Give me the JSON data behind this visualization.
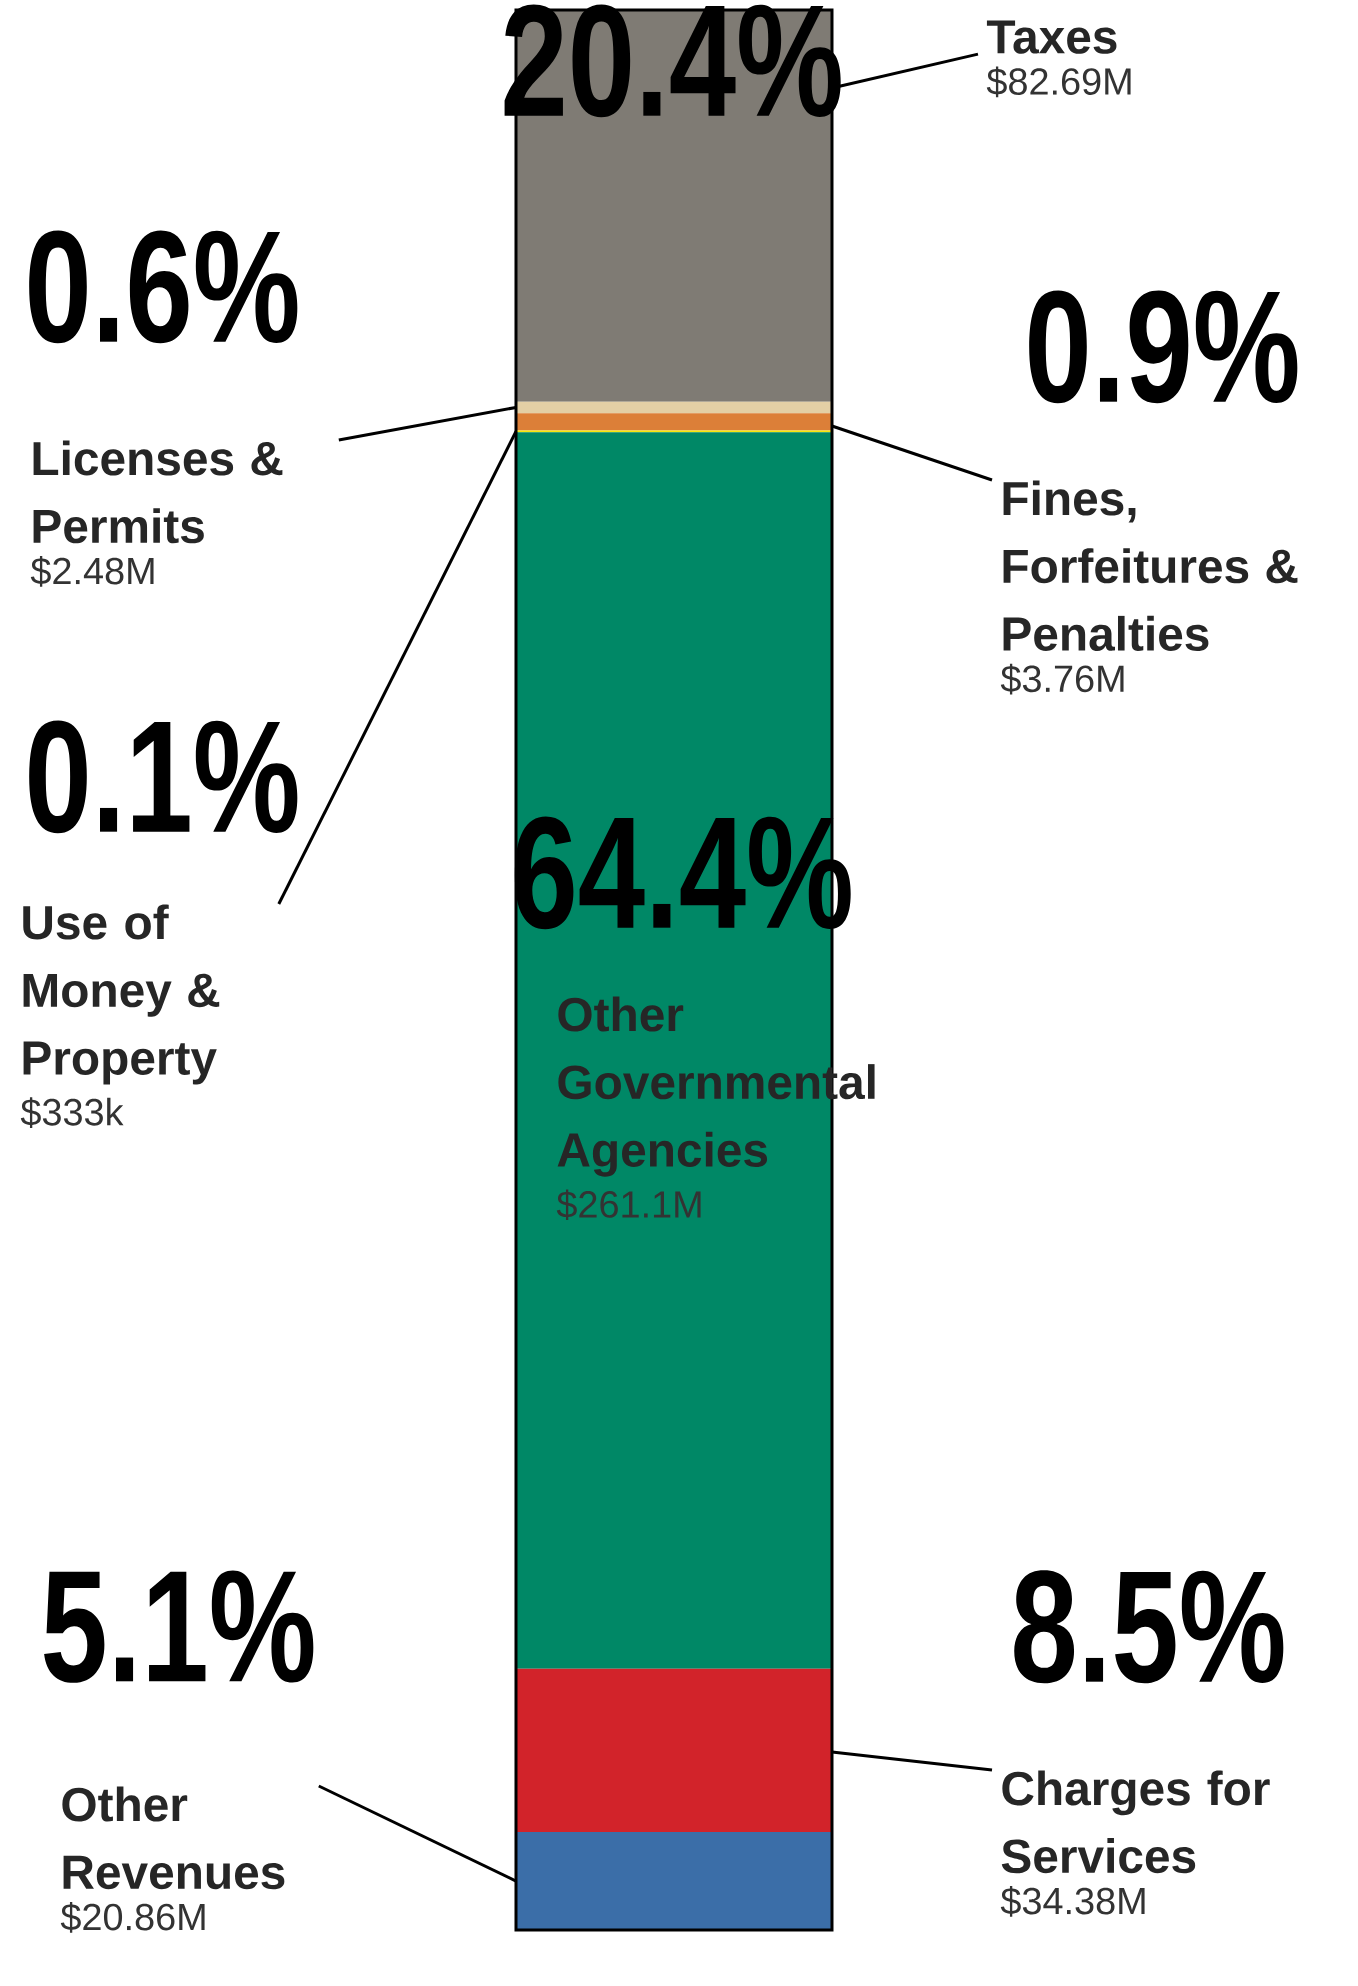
{
  "chart_data": {
    "type": "bar",
    "stacked": true,
    "categories": [
      null
    ],
    "series": [
      {
        "name": "Other Revenues",
        "color": "#3b6ea8",
        "values": [
          5.1
        ],
        "value_labels": [
          "5.1%"
        ]
      },
      {
        "name": "Charges for Services",
        "color": "#d2232a",
        "values": [
          8.5
        ],
        "value_labels": [
          "8.5%"
        ]
      },
      {
        "name": "Other Governmental Agencies",
        "color": "#008866",
        "values": [
          64.4
        ],
        "value_labels": [
          "64.4%"
        ]
      },
      {
        "name": "Use of Money & Property",
        "color": "#f5e60c",
        "values": [
          0.1
        ],
        "value_labels": [
          "0.1%"
        ]
      },
      {
        "name": "Fines, Forfeitures & Penalties",
        "color": "#dc7f38",
        "values": [
          0.9
        ],
        "value_labels": [
          "0.9%"
        ]
      },
      {
        "name": "Licenses & Permits",
        "color": "#e3cfa5",
        "values": [
          0.6
        ],
        "value_labels": [
          "0.6%"
        ]
      },
      {
        "name": "Taxes",
        "color": "#7f7b74",
        "values": [
          20.4
        ],
        "value_labels": [
          "20.4%"
        ]
      }
    ],
    "annotations": [
      "$20.86M",
      "$34.38M",
      "$261.1M",
      "$333k",
      "$3.76M",
      "$2.48M",
      "$82.69M"
    ]
  }
}
